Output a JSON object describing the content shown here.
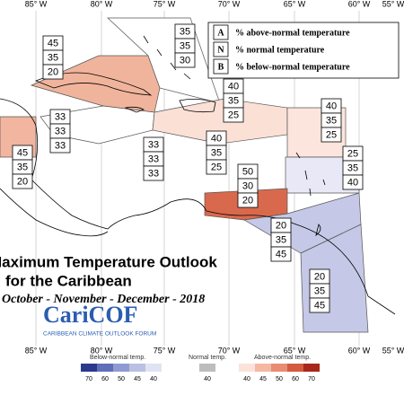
{
  "longitude_labels_top": [
    "85° W",
    "80° W",
    "75° W",
    "70° W",
    "65° W",
    "60° W",
    "55° W"
  ],
  "longitude_labels_bottom": [
    "85° W",
    "80° W",
    "75° W",
    "70° W",
    "65° W",
    "60° W",
    "55° W"
  ],
  "legend": [
    {
      "letter": "A",
      "text": "% above-normal temperature"
    },
    {
      "letter": "N",
      "text": "% normal temperature"
    },
    {
      "letter": "B",
      "text": "% below-normal temperature"
    }
  ],
  "regions": [
    {
      "above": 45,
      "normal": 35,
      "below": 20
    },
    {
      "above": 35,
      "normal": 35,
      "below": 30
    },
    {
      "above": 33,
      "normal": 33,
      "below": 33
    },
    {
      "above": 45,
      "normal": 35,
      "below": 20
    },
    {
      "above": 33,
      "normal": 33,
      "below": 33
    },
    {
      "above": 40,
      "normal": 35,
      "below": 25
    },
    {
      "above": 40,
      "normal": 35,
      "below": 25
    },
    {
      "above": 40,
      "normal": 35,
      "below": 25
    },
    {
      "above": 25,
      "normal": 35,
      "below": 40
    },
    {
      "above": 50,
      "normal": 30,
      "below": 20
    },
    {
      "above": 20,
      "normal": 35,
      "below": 45
    },
    {
      "above": 20,
      "normal": 35,
      "below": 45
    }
  ],
  "title": {
    "line1": "Maximum Temperature Outlook",
    "line2": "for the Caribbean",
    "period": "October - November - December - 2018"
  },
  "logo": {
    "name": "CariCOF",
    "tagline": "CARIBBEAN CLIMATE OUTLOOK FORUM"
  },
  "colorbar": {
    "below_label": "Below-normal temp.",
    "below_ticks": [
      70,
      60,
      50,
      45,
      40
    ],
    "normal_label": "Normal temp.",
    "normal_ticks": [
      40
    ],
    "above_label": "Above-normal temp.",
    "above_ticks": [
      40,
      45,
      50,
      60,
      70
    ]
  }
}
